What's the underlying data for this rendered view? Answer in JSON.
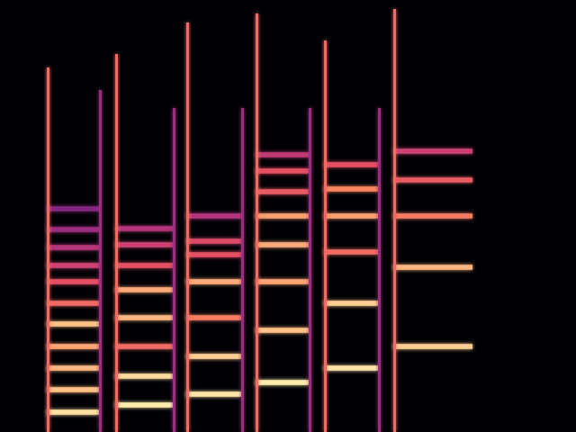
{
  "chart_data": {
    "type": "spectrogram",
    "xlim": [
      0,
      64
    ],
    "ylim": [
      0,
      96
    ],
    "tick_labels": false,
    "grid": false,
    "color_range": [
      -80,
      0
    ],
    "notes": [
      {
        "start": 5.2,
        "end": 11.0,
        "partials": [
          [
            4.4,
            -5
          ],
          [
            9.4,
            -10
          ],
          [
            14.2,
            -12
          ],
          [
            19.0,
            -15
          ],
          [
            24.0,
            -10
          ],
          [
            28.6,
            -25
          ],
          [
            33.4,
            -30
          ],
          [
            37.0,
            -35
          ],
          [
            41.0,
            -40
          ],
          [
            45.0,
            -45
          ],
          [
            49.6,
            -50
          ]
        ]
      },
      {
        "start": 12.8,
        "end": 19.2,
        "partials": [
          [
            6.0,
            -3
          ],
          [
            12.4,
            -6
          ],
          [
            19.0,
            -25
          ],
          [
            25.4,
            -12
          ],
          [
            31.6,
            -14
          ],
          [
            37.0,
            -30
          ],
          [
            41.6,
            -35
          ],
          [
            45.2,
            -40
          ]
        ]
      },
      {
        "start": 20.7,
        "end": 26.8,
        "partials": [
          [
            8.4,
            -4
          ],
          [
            16.8,
            -8
          ],
          [
            25.4,
            -22
          ],
          [
            33.4,
            -14
          ],
          [
            39.4,
            -30
          ],
          [
            42.4,
            -32
          ],
          [
            48.0,
            -40
          ]
        ]
      },
      {
        "start": 28.4,
        "end": 34.3,
        "partials": [
          [
            11.0,
            -3
          ],
          [
            22.6,
            -10
          ],
          [
            33.4,
            -15
          ],
          [
            41.6,
            -14
          ],
          [
            48.0,
            -16
          ],
          [
            53.4,
            -28
          ],
          [
            58.0,
            -30
          ],
          [
            61.6,
            -38
          ]
        ]
      },
      {
        "start": 36.0,
        "end": 42.0,
        "partials": [
          [
            14.2,
            -4
          ],
          [
            28.6,
            -8
          ],
          [
            40.0,
            -25
          ],
          [
            48.0,
            -16
          ],
          [
            54.0,
            -20
          ],
          [
            59.4,
            -30
          ]
        ]
      },
      {
        "start": 43.7,
        "end": 52.5,
        "partials": [
          [
            19.0,
            -8
          ],
          [
            36.6,
            -12
          ],
          [
            48.0,
            -22
          ],
          [
            56.0,
            -28
          ],
          [
            62.4,
            -35
          ]
        ]
      }
    ],
    "transients": [
      [
        5.2,
        81,
        -25
      ],
      [
        12.8,
        84,
        -25
      ],
      [
        20.7,
        91,
        -25
      ],
      [
        28.4,
        93,
        -25
      ],
      [
        36.0,
        87,
        -25
      ],
      [
        43.7,
        94,
        -25
      ],
      [
        11.0,
        76,
        -45
      ],
      [
        19.2,
        72,
        -45
      ],
      [
        26.8,
        72,
        -45
      ],
      [
        34.3,
        72,
        -45
      ],
      [
        42.0,
        72,
        -45
      ]
    ]
  }
}
